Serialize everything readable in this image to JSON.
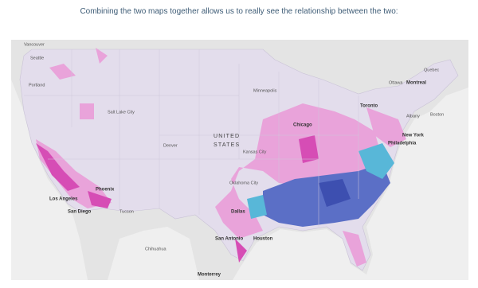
{
  "caption": "Combining the two maps together allows us to really see the relationship between the two:",
  "map": {
    "labels": [
      {
        "text": "Vancouver"
      },
      {
        "text": "Seattle"
      },
      {
        "text": "Portland"
      },
      {
        "text": "Salt Lake City"
      },
      {
        "text": "Denver"
      },
      {
        "text": "UNITED"
      },
      {
        "text": "STATES"
      },
      {
        "text": "Kansas City"
      },
      {
        "text": "Minneapolis"
      },
      {
        "text": "Chicago"
      },
      {
        "text": "Toronto"
      },
      {
        "text": "Ottawa"
      },
      {
        "text": "Montreal"
      },
      {
        "text": "Quebec"
      },
      {
        "text": "Albany"
      },
      {
        "text": "Boston"
      },
      {
        "text": "New York"
      },
      {
        "text": "Philadelphia"
      },
      {
        "text": "Oklahoma City"
      },
      {
        "text": "Dallas"
      },
      {
        "text": "Houston"
      },
      {
        "text": "San Antonio"
      },
      {
        "text": "Monterrey"
      },
      {
        "text": "Chihuahua"
      },
      {
        "text": "Phoenix"
      },
      {
        "text": "Los Angeles"
      },
      {
        "text": "San Diego"
      },
      {
        "text": "Tucson"
      }
    ]
  }
}
